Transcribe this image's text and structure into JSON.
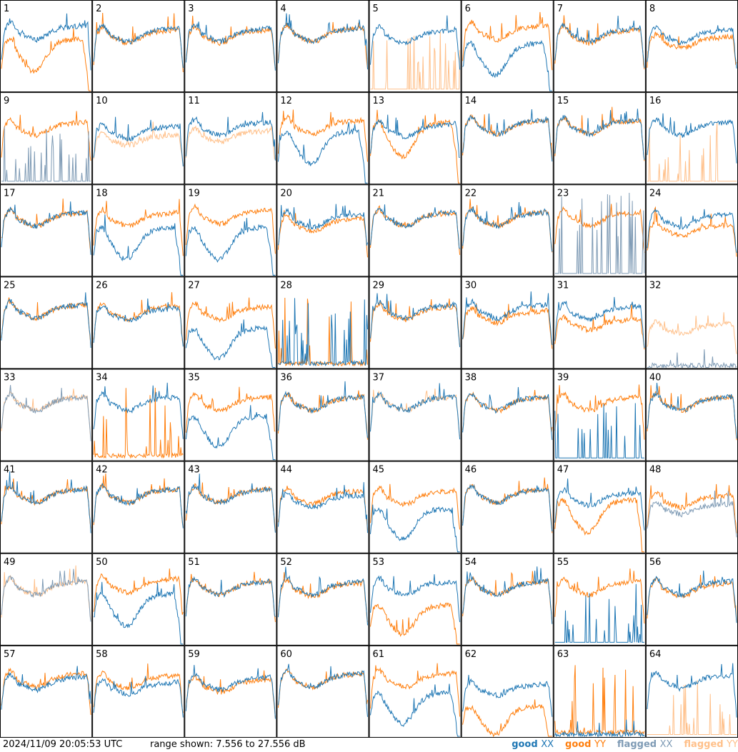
{
  "chart_data": {
    "type": "line",
    "layout": "small-multiples 8x8 grid of per-tile bandpass spectra",
    "panels": [
      {
        "label": "1",
        "xx": "good",
        "yy": "good",
        "xx_level": 0.75,
        "yy_level": 0.6,
        "yy_shape": "dropout"
      },
      {
        "label": "2",
        "xx": "good",
        "yy": "good",
        "xx_level": 0.72,
        "yy_level": 0.7
      },
      {
        "label": "3",
        "xx": "good",
        "yy": "good",
        "xx_level": 0.72,
        "yy_level": 0.7
      },
      {
        "label": "4",
        "xx": "good",
        "yy": "good",
        "xx_level": 0.72,
        "yy_level": 0.72
      },
      {
        "label": "5",
        "xx": "good",
        "yy": "flagged-spiky",
        "xx_level": 0.7,
        "yy_level": 0.1
      },
      {
        "label": "6",
        "xx": "good",
        "yy": "good",
        "xx_level": 0.55,
        "yy_level": 0.75,
        "xx_shape": "dropout"
      },
      {
        "label": "7",
        "xx": "good",
        "yy": "good",
        "xx_level": 0.72,
        "yy_level": 0.7
      },
      {
        "label": "8",
        "xx": "good",
        "yy": "good",
        "xx_level": 0.7,
        "yy_level": 0.62
      },
      {
        "label": "9",
        "xx": "flagged-spiky",
        "yy": "good",
        "xx_level": 0.1,
        "yy_level": 0.7
      },
      {
        "label": "10",
        "xx": "good",
        "yy": "flagged",
        "xx_level": 0.65,
        "yy_level": 0.55
      },
      {
        "label": "11",
        "xx": "good",
        "yy": "flagged",
        "xx_level": 0.7,
        "yy_level": 0.6
      },
      {
        "label": "12",
        "xx": "good",
        "yy": "good",
        "xx_level": 0.6,
        "yy_level": 0.72,
        "xx_shape": "dropout"
      },
      {
        "label": "13",
        "xx": "good",
        "yy": "good",
        "xx_level": 0.68,
        "yy_level": 0.7,
        "yy_shape": "dropout"
      },
      {
        "label": "14",
        "xx": "good",
        "yy": "good",
        "xx_level": 0.72,
        "yy_level": 0.72
      },
      {
        "label": "15",
        "xx": "good",
        "yy": "good",
        "xx_level": 0.72,
        "yy_level": 0.72
      },
      {
        "label": "16",
        "xx": "good",
        "yy": "flagged-spiky",
        "xx_level": 0.7,
        "yy_level": 0.1
      },
      {
        "label": "17",
        "xx": "good",
        "yy": "good",
        "xx_level": 0.72,
        "yy_level": 0.72
      },
      {
        "label": "18",
        "xx": "good",
        "yy": "good",
        "xx_level": 0.55,
        "yy_level": 0.72,
        "xx_shape": "dropout"
      },
      {
        "label": "19",
        "xx": "good",
        "yy": "good",
        "xx_level": 0.55,
        "yy_level": 0.75,
        "xx_shape": "dropout"
      },
      {
        "label": "20",
        "xx": "good",
        "yy": "good",
        "xx_level": 0.7,
        "yy_level": 0.65
      },
      {
        "label": "21",
        "xx": "good",
        "yy": "good",
        "xx_level": 0.72,
        "yy_level": 0.72
      },
      {
        "label": "22",
        "xx": "good",
        "yy": "good",
        "xx_level": 0.72,
        "yy_level": 0.72
      },
      {
        "label": "23",
        "xx": "flagged-spiky",
        "yy": "good",
        "xx_level": 0.35,
        "yy_level": 0.72
      },
      {
        "label": "24",
        "xx": "good",
        "yy": "good",
        "xx_level": 0.7,
        "yy_level": 0.58
      },
      {
        "label": "25",
        "xx": "good",
        "yy": "good",
        "xx_level": 0.72,
        "yy_level": 0.72
      },
      {
        "label": "26",
        "xx": "good",
        "yy": "good",
        "xx_level": 0.68,
        "yy_level": 0.7
      },
      {
        "label": "27",
        "xx": "good",
        "yy": "good",
        "xx_level": 0.45,
        "yy_level": 0.7,
        "xx_shape": "dropout"
      },
      {
        "label": "28",
        "xx": "good",
        "yy": "good",
        "xx_level": 0.1,
        "yy_level": 0.15,
        "xx_shape": "dead",
        "yy_shape": "dead"
      },
      {
        "label": "29",
        "xx": "good",
        "yy": "good",
        "xx_level": 0.72,
        "yy_level": 0.7
      },
      {
        "label": "30",
        "xx": "good",
        "yy": "good",
        "xx_level": 0.72,
        "yy_level": 0.65
      },
      {
        "label": "31",
        "xx": "good",
        "yy": "good",
        "xx_level": 0.7,
        "yy_level": 0.55
      },
      {
        "label": "32",
        "xx": "flagged",
        "yy": "flagged",
        "xx_level": 0.02,
        "yy_level": 0.5
      },
      {
        "label": "33",
        "xx": "flagged",
        "yy": "flagged",
        "xx_level": 0.72,
        "yy_level": 0.72
      },
      {
        "label": "34",
        "xx": "good",
        "yy": "good",
        "xx_level": 0.72,
        "yy_level": 0.1,
        "yy_shape": "dead"
      },
      {
        "label": "35",
        "xx": "good",
        "yy": "good",
        "xx_level": 0.5,
        "yy_level": 0.72,
        "xx_shape": "dropout"
      },
      {
        "label": "36",
        "xx": "good",
        "yy": "good",
        "xx_level": 0.72,
        "yy_level": 0.72
      },
      {
        "label": "37",
        "xx": "good",
        "yy": "flagged",
        "xx_level": 0.72,
        "yy_level": 0.72
      },
      {
        "label": "38",
        "xx": "good",
        "yy": "good",
        "xx_level": 0.72,
        "yy_level": 0.72
      },
      {
        "label": "39",
        "xx": "good-spiky",
        "yy": "good",
        "xx_level": 0.1,
        "yy_level": 0.72
      },
      {
        "label": "40",
        "xx": "good",
        "yy": "good",
        "xx_level": 0.72,
        "yy_level": 0.72
      },
      {
        "label": "41",
        "xx": "good",
        "yy": "good",
        "xx_level": 0.72,
        "yy_level": 0.72
      },
      {
        "label": "42",
        "xx": "good",
        "yy": "good",
        "xx_level": 0.72,
        "yy_level": 0.72
      },
      {
        "label": "43",
        "xx": "good",
        "yy": "good",
        "xx_level": 0.72,
        "yy_level": 0.72
      },
      {
        "label": "44",
        "xx": "good",
        "yy": "good",
        "xx_level": 0.65,
        "yy_level": 0.7
      },
      {
        "label": "45",
        "xx": "good",
        "yy": "good",
        "xx_level": 0.5,
        "yy_level": 0.7,
        "xx_shape": "dropout"
      },
      {
        "label": "46",
        "xx": "good",
        "yy": "good",
        "xx_level": 0.72,
        "yy_level": 0.72
      },
      {
        "label": "47",
        "xx": "good",
        "yy": "good",
        "xx_level": 0.68,
        "yy_level": 0.6,
        "yy_shape": "dropout"
      },
      {
        "label": "48",
        "xx": "flagged",
        "yy": "good",
        "xx_level": 0.55,
        "yy_level": 0.65
      },
      {
        "label": "49",
        "xx": "flagged",
        "yy": "flagged",
        "xx_level": 0.72,
        "yy_level": 0.72
      },
      {
        "label": "50",
        "xx": "good",
        "yy": "good",
        "xx_level": 0.58,
        "yy_level": 0.75,
        "xx_shape": "dropout"
      },
      {
        "label": "51",
        "xx": "good",
        "yy": "good",
        "xx_level": 0.72,
        "yy_level": 0.72
      },
      {
        "label": "52",
        "xx": "good",
        "yy": "good",
        "xx_level": 0.72,
        "yy_level": 0.7
      },
      {
        "label": "53",
        "xx": "good",
        "yy": "good",
        "xx_level": 0.72,
        "yy_level": 0.45,
        "yy_shape": "dropout"
      },
      {
        "label": "54",
        "xx": "good",
        "yy": "good",
        "xx_level": 0.72,
        "yy_level": 0.72
      },
      {
        "label": "55",
        "xx": "good-spiky",
        "yy": "good",
        "xx_level": 0.1,
        "yy_level": 0.72
      },
      {
        "label": "56",
        "xx": "good",
        "yy": "good",
        "xx_level": 0.72,
        "yy_level": 0.7
      },
      {
        "label": "57",
        "xx": "good",
        "yy": "good",
        "xx_level": 0.68,
        "yy_level": 0.72
      },
      {
        "label": "58",
        "xx": "good",
        "yy": "good",
        "xx_level": 0.62,
        "yy_level": 0.7
      },
      {
        "label": "59",
        "xx": "good",
        "yy": "good",
        "xx_level": 0.68,
        "yy_level": 0.65
      },
      {
        "label": "60",
        "xx": "good",
        "yy": "good",
        "xx_level": 0.72,
        "yy_level": 0.72
      },
      {
        "label": "61",
        "xx": "good",
        "yy": "good",
        "xx_level": 0.5,
        "yy_level": 0.72,
        "xx_shape": "dropout"
      },
      {
        "label": "62",
        "xx": "good",
        "yy": "good",
        "xx_level": 0.6,
        "yy_level": 0.35,
        "yy_shape": "dropout"
      },
      {
        "label": "63",
        "xx": "good",
        "yy": "good",
        "xx_level": 0.02,
        "yy_level": 0.1,
        "yy_shape": "dead"
      },
      {
        "label": "64",
        "xx": "good",
        "yy": "flagged-spiky",
        "xx_level": 0.7,
        "yy_level": 0.05
      }
    ],
    "legend": {
      "placement": "bottom-right"
    }
  },
  "footer": {
    "timestamp": "2024/11/09 20:05:53 UTC",
    "range_text": "range shown: 7.556 to 27.556 dB"
  },
  "legend": {
    "good_xx": {
      "word": "good",
      "pol": "XX",
      "color": "#1f77b4"
    },
    "good_yy": {
      "word": "good",
      "pol": "YY",
      "color": "#ff7f0e"
    },
    "flagged_xx": {
      "word": "flagged",
      "pol": "XX",
      "color": "#7f9bb5"
    },
    "flagged_yy": {
      "word": "flagged",
      "pol": "YY",
      "color": "#ffc08a"
    }
  },
  "colors": {
    "good_xx": "#1f77b4",
    "good_yy": "#ff7f0e",
    "flagged_xx": "#7f9bb5",
    "flagged_yy": "#ffc08a",
    "frame": "#000000"
  }
}
